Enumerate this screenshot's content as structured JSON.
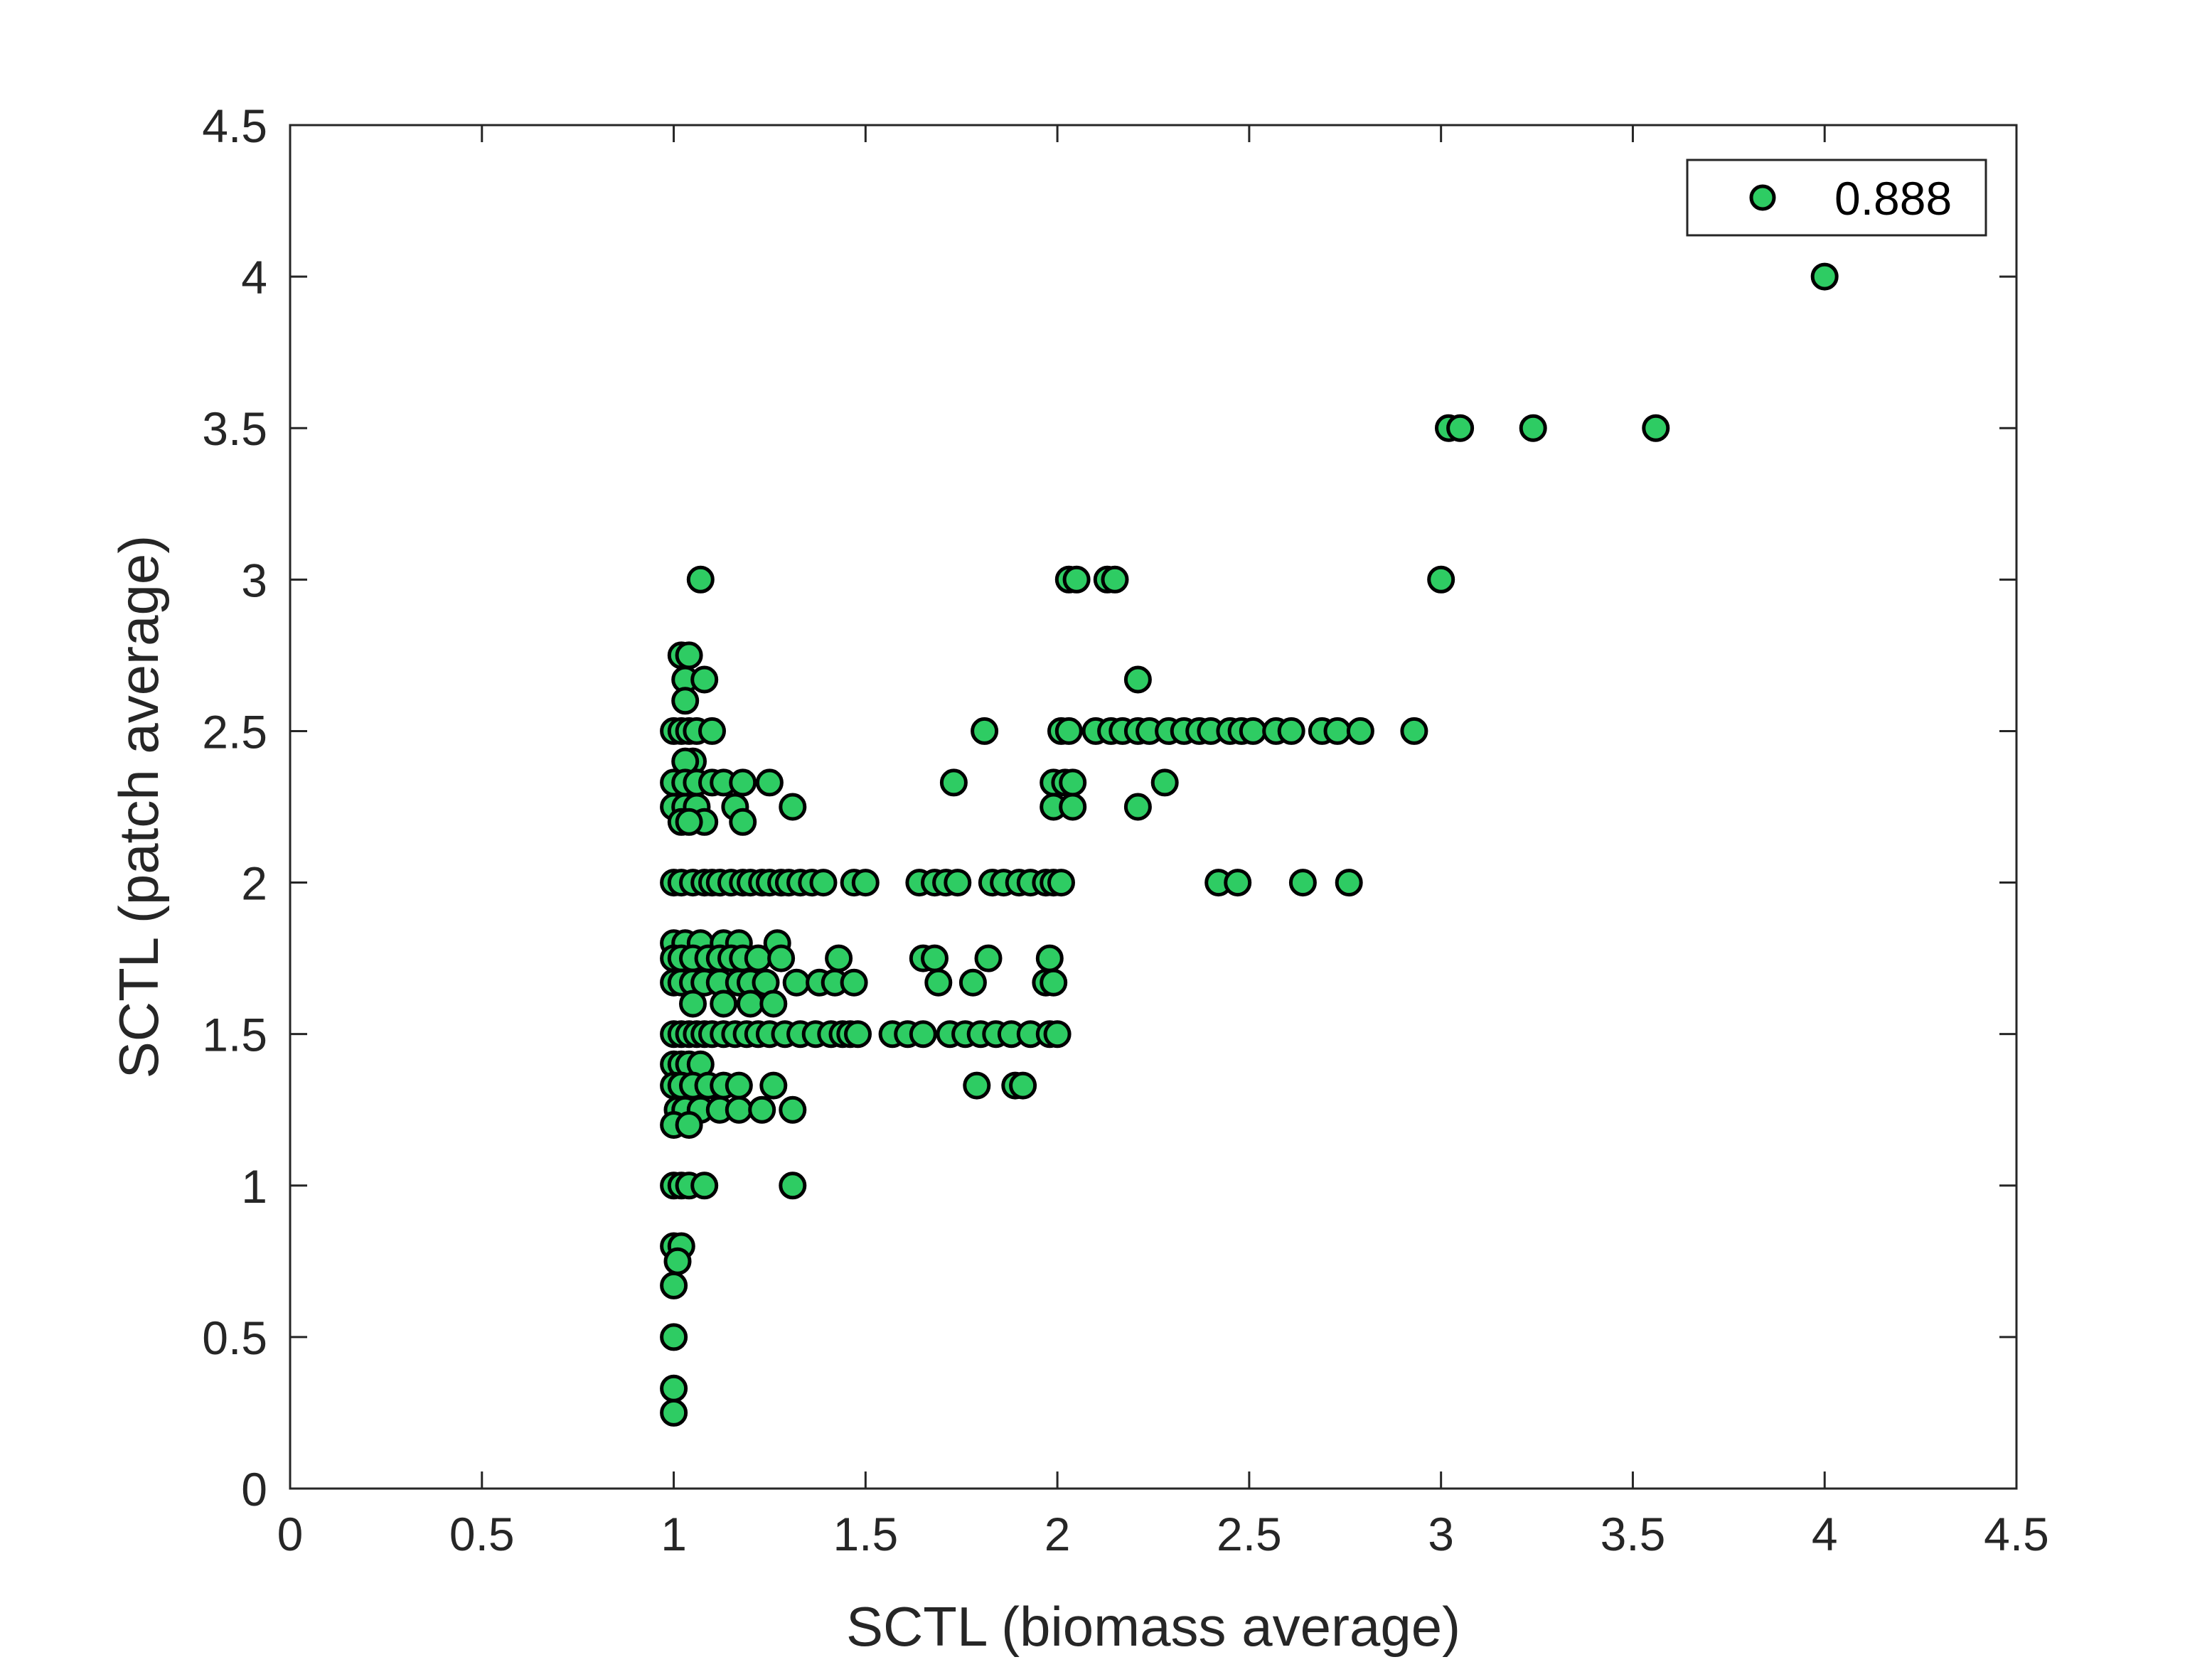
{
  "chart_data": {
    "type": "scatter",
    "xlabel": "SCTL (biomass average)",
    "ylabel": "SCTL (patch average)",
    "xlim": [
      0,
      4.5
    ],
    "ylim": [
      0,
      4.5
    ],
    "x_ticks": [
      0,
      0.5,
      1,
      1.5,
      2,
      2.5,
      3,
      3.5,
      4,
      4.5
    ],
    "y_ticks": [
      0,
      0.5,
      1,
      1.5,
      2,
      2.5,
      3,
      3.5,
      4,
      4.5
    ],
    "x_tick_labels": [
      "0",
      "0.5",
      "1",
      "1.5",
      "2",
      "2.5",
      "3",
      "3.5",
      "4",
      "4.5"
    ],
    "y_tick_labels": [
      "0",
      "0.5",
      "1",
      "1.5",
      "2",
      "2.5",
      "3",
      "3.5",
      "4",
      "4.5"
    ],
    "grid": false,
    "box": true,
    "legend": {
      "position": "top-right",
      "entries": [
        "0.888"
      ]
    },
    "series": [
      {
        "name": "0.888",
        "marker_face_color": "#2ecc63",
        "marker_edge_color": "#000000",
        "points": [
          [
            4.0,
            4.0
          ],
          [
            3.02,
            3.5
          ],
          [
            3.05,
            3.5
          ],
          [
            3.24,
            3.5
          ],
          [
            3.56,
            3.5
          ],
          [
            3.0,
            3.0
          ],
          [
            1.07,
            3.0
          ],
          [
            2.03,
            3.0
          ],
          [
            2.05,
            3.0
          ],
          [
            2.13,
            3.0
          ],
          [
            2.15,
            3.0
          ],
          [
            1.02,
            2.75
          ],
          [
            1.04,
            2.75
          ],
          [
            1.03,
            2.67
          ],
          [
            1.08,
            2.67
          ],
          [
            2.21,
            2.67
          ],
          [
            1.03,
            2.6
          ],
          [
            1.0,
            2.5
          ],
          [
            1.02,
            2.5
          ],
          [
            1.04,
            2.5
          ],
          [
            1.06,
            2.5
          ],
          [
            1.1,
            2.5
          ],
          [
            1.81,
            2.5
          ],
          [
            2.01,
            2.5
          ],
          [
            2.03,
            2.5
          ],
          [
            2.1,
            2.5
          ],
          [
            2.14,
            2.5
          ],
          [
            2.17,
            2.5
          ],
          [
            2.21,
            2.5
          ],
          [
            2.24,
            2.5
          ],
          [
            2.29,
            2.5
          ],
          [
            2.33,
            2.5
          ],
          [
            2.37,
            2.5
          ],
          [
            2.4,
            2.5
          ],
          [
            2.45,
            2.5
          ],
          [
            2.48,
            2.5
          ],
          [
            2.51,
            2.5
          ],
          [
            2.57,
            2.5
          ],
          [
            2.61,
            2.5
          ],
          [
            2.69,
            2.5
          ],
          [
            2.73,
            2.5
          ],
          [
            2.79,
            2.5
          ],
          [
            2.93,
            2.5
          ],
          [
            1.05,
            2.4
          ],
          [
            1.03,
            2.4
          ],
          [
            1.0,
            2.33
          ],
          [
            1.03,
            2.33
          ],
          [
            1.06,
            2.33
          ],
          [
            1.1,
            2.33
          ],
          [
            1.13,
            2.33
          ],
          [
            1.18,
            2.33
          ],
          [
            1.25,
            2.33
          ],
          [
            1.73,
            2.33
          ],
          [
            1.99,
            2.33
          ],
          [
            2.02,
            2.33
          ],
          [
            2.04,
            2.33
          ],
          [
            2.28,
            2.33
          ],
          [
            1.0,
            2.25
          ],
          [
            1.03,
            2.25
          ],
          [
            1.06,
            2.25
          ],
          [
            1.16,
            2.25
          ],
          [
            1.31,
            2.25
          ],
          [
            1.99,
            2.25
          ],
          [
            2.04,
            2.25
          ],
          [
            2.21,
            2.25
          ],
          [
            1.02,
            2.2
          ],
          [
            1.08,
            2.2
          ],
          [
            1.04,
            2.2
          ],
          [
            1.18,
            2.2
          ],
          [
            1.0,
            2.0
          ],
          [
            1.02,
            2.0
          ],
          [
            1.05,
            2.0
          ],
          [
            1.08,
            2.0
          ],
          [
            1.1,
            2.0
          ],
          [
            1.12,
            2.0
          ],
          [
            1.15,
            2.0
          ],
          [
            1.18,
            2.0
          ],
          [
            1.2,
            2.0
          ],
          [
            1.23,
            2.0
          ],
          [
            1.25,
            2.0
          ],
          [
            1.28,
            2.0
          ],
          [
            1.3,
            2.0
          ],
          [
            1.33,
            2.0
          ],
          [
            1.36,
            2.0
          ],
          [
            1.39,
            2.0
          ],
          [
            1.47,
            2.0
          ],
          [
            1.5,
            2.0
          ],
          [
            1.64,
            2.0
          ],
          [
            1.68,
            2.0
          ],
          [
            1.71,
            2.0
          ],
          [
            1.74,
            2.0
          ],
          [
            1.83,
            2.0
          ],
          [
            1.86,
            2.0
          ],
          [
            1.9,
            2.0
          ],
          [
            1.93,
            2.0
          ],
          [
            1.97,
            2.0
          ],
          [
            1.99,
            2.0
          ],
          [
            2.01,
            2.0
          ],
          [
            2.42,
            2.0
          ],
          [
            2.47,
            2.0
          ],
          [
            2.64,
            2.0
          ],
          [
            2.76,
            2.0
          ],
          [
            1.0,
            1.8
          ],
          [
            1.03,
            1.8
          ],
          [
            1.07,
            1.8
          ],
          [
            1.13,
            1.8
          ],
          [
            1.17,
            1.8
          ],
          [
            1.27,
            1.8
          ],
          [
            1.0,
            1.75
          ],
          [
            1.02,
            1.75
          ],
          [
            1.05,
            1.75
          ],
          [
            1.09,
            1.75
          ],
          [
            1.12,
            1.75
          ],
          [
            1.15,
            1.75
          ],
          [
            1.18,
            1.75
          ],
          [
            1.22,
            1.75
          ],
          [
            1.28,
            1.75
          ],
          [
            1.43,
            1.75
          ],
          [
            1.65,
            1.75
          ],
          [
            1.68,
            1.75
          ],
          [
            1.82,
            1.75
          ],
          [
            1.98,
            1.75
          ],
          [
            1.0,
            1.67
          ],
          [
            1.02,
            1.67
          ],
          [
            1.05,
            1.67
          ],
          [
            1.08,
            1.67
          ],
          [
            1.12,
            1.67
          ],
          [
            1.17,
            1.67
          ],
          [
            1.2,
            1.67
          ],
          [
            1.24,
            1.67
          ],
          [
            1.32,
            1.67
          ],
          [
            1.38,
            1.67
          ],
          [
            1.42,
            1.67
          ],
          [
            1.47,
            1.67
          ],
          [
            1.69,
            1.67
          ],
          [
            1.78,
            1.67
          ],
          [
            1.97,
            1.67
          ],
          [
            1.99,
            1.67
          ],
          [
            1.05,
            1.6
          ],
          [
            1.13,
            1.6
          ],
          [
            1.2,
            1.6
          ],
          [
            1.26,
            1.6
          ],
          [
            1.0,
            1.5
          ],
          [
            1.02,
            1.5
          ],
          [
            1.04,
            1.5
          ],
          [
            1.06,
            1.5
          ],
          [
            1.08,
            1.5
          ],
          [
            1.1,
            1.5
          ],
          [
            1.13,
            1.5
          ],
          [
            1.16,
            1.5
          ],
          [
            1.19,
            1.5
          ],
          [
            1.22,
            1.5
          ],
          [
            1.25,
            1.5
          ],
          [
            1.29,
            1.5
          ],
          [
            1.33,
            1.5
          ],
          [
            1.37,
            1.5
          ],
          [
            1.41,
            1.5
          ],
          [
            1.44,
            1.5
          ],
          [
            1.46,
            1.5
          ],
          [
            1.48,
            1.5
          ],
          [
            1.57,
            1.5
          ],
          [
            1.61,
            1.5
          ],
          [
            1.65,
            1.5
          ],
          [
            1.72,
            1.5
          ],
          [
            1.76,
            1.5
          ],
          [
            1.8,
            1.5
          ],
          [
            1.84,
            1.5
          ],
          [
            1.88,
            1.5
          ],
          [
            1.93,
            1.5
          ],
          [
            1.98,
            1.5
          ],
          [
            2.0,
            1.5
          ],
          [
            1.0,
            1.4
          ],
          [
            1.02,
            1.4
          ],
          [
            1.04,
            1.4
          ],
          [
            1.07,
            1.4
          ],
          [
            1.0,
            1.33
          ],
          [
            1.02,
            1.33
          ],
          [
            1.05,
            1.33
          ],
          [
            1.09,
            1.33
          ],
          [
            1.13,
            1.33
          ],
          [
            1.17,
            1.33
          ],
          [
            1.26,
            1.33
          ],
          [
            1.79,
            1.33
          ],
          [
            1.89,
            1.33
          ],
          [
            1.91,
            1.33
          ],
          [
            1.01,
            1.25
          ],
          [
            1.03,
            1.25
          ],
          [
            1.07,
            1.25
          ],
          [
            1.12,
            1.25
          ],
          [
            1.17,
            1.25
          ],
          [
            1.23,
            1.25
          ],
          [
            1.31,
            1.25
          ],
          [
            1.0,
            1.2
          ],
          [
            1.04,
            1.2
          ],
          [
            1.0,
            1.0
          ],
          [
            1.02,
            1.0
          ],
          [
            1.04,
            1.0
          ],
          [
            1.08,
            1.0
          ],
          [
            1.31,
            1.0
          ],
          [
            1.0,
            0.8
          ],
          [
            1.02,
            0.8
          ],
          [
            1.01,
            0.75
          ],
          [
            1.0,
            0.67
          ],
          [
            1.0,
            0.5
          ],
          [
            1.0,
            0.33
          ],
          [
            1.0,
            0.25
          ]
        ]
      }
    ]
  }
}
